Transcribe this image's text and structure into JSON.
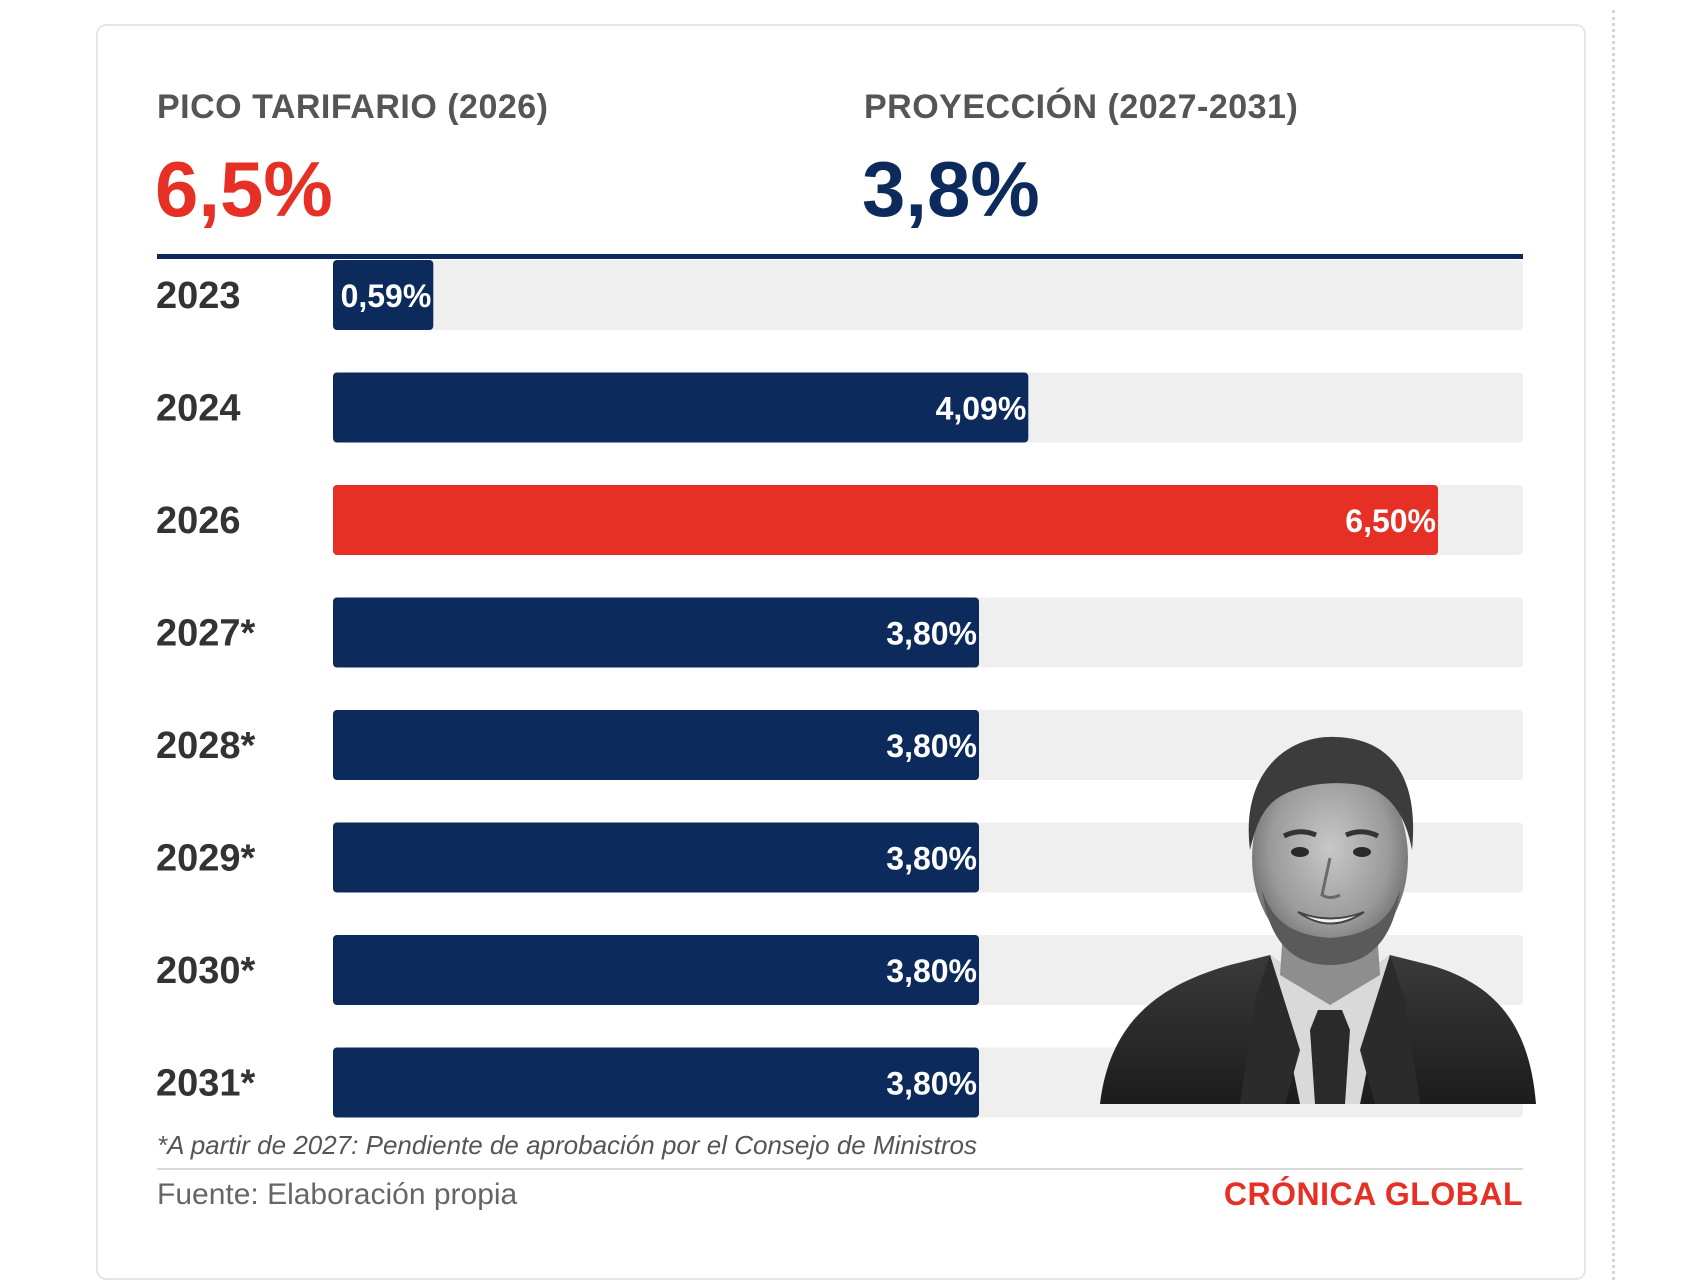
{
  "kpis": {
    "peak": {
      "label": "PICO TARIFARIO (2026)",
      "value": "6,5%"
    },
    "projection": {
      "label": "PROYECCIÓN (2027-2031)",
      "value": "3,8%"
    }
  },
  "colors": {
    "navy": "#0d2a5c",
    "red": "#e63025",
    "track": "#efefef",
    "peak_value": "#e63025",
    "projection_value": "#0d2a5c",
    "brand": "#e63025"
  },
  "chart_data": {
    "type": "bar",
    "orientation": "horizontal",
    "categories": [
      "2023",
      "2024",
      "2026",
      "2027*",
      "2028*",
      "2029*",
      "2030*",
      "2031*"
    ],
    "values": [
      0.59,
      4.09,
      6.5,
      3.8,
      3.8,
      3.8,
      3.8,
      3.8
    ],
    "value_labels": [
      "0,59%",
      "4,09%",
      "6,50%",
      "3,80%",
      "3,80%",
      "3,80%",
      "3,80%",
      "3,80%"
    ],
    "highlight": [
      "2026"
    ],
    "xlim": [
      0,
      7.0
    ],
    "grid": false
  },
  "footnote": "*A partir de 2027: Pendiente de aprobación por el Consejo de Ministros",
  "source": "Fuente: Elaboración propia",
  "brand": "CRÓNICA GLOBAL",
  "photo_icon": "person-portrait-icon"
}
